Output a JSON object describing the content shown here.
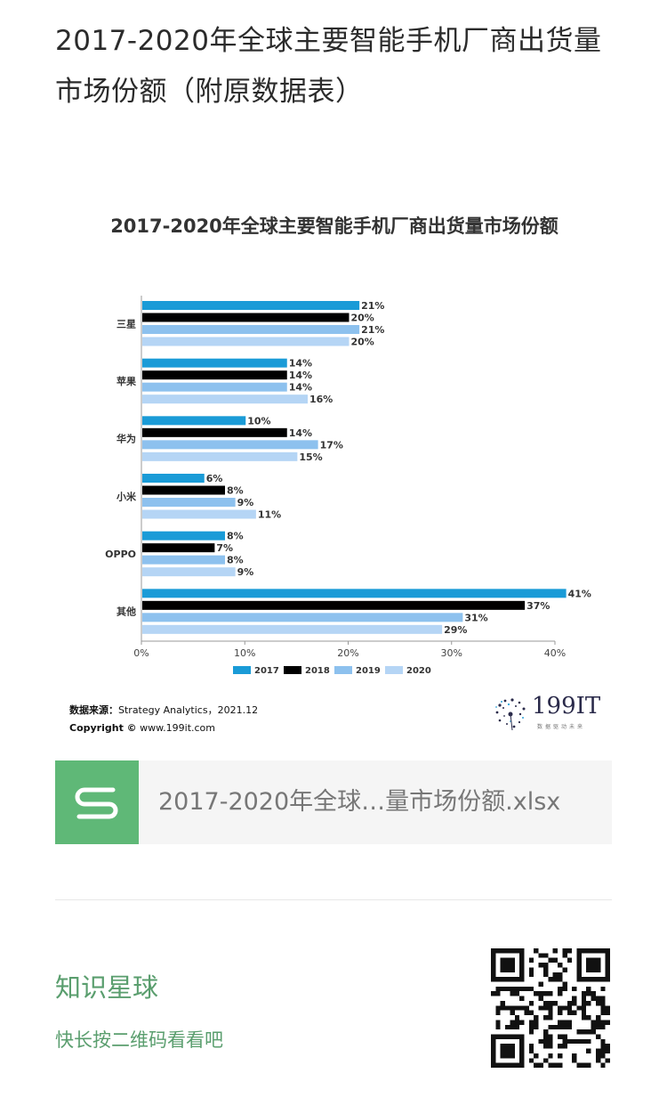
{
  "page": {
    "title": "2017-2020年全球主要智能手机厂商出货量市场份额（附原数据表）"
  },
  "chart_data": {
    "type": "bar",
    "orientation": "horizontal",
    "title": "2017-2020年全球主要智能手机厂商出货量市场份额",
    "categories": [
      "三星",
      "苹果",
      "华为",
      "小米",
      "OPPO",
      "其他"
    ],
    "series": [
      {
        "name": "2017",
        "color": "#1a9bd7",
        "values": [
          21,
          14,
          10,
          6,
          8,
          41
        ]
      },
      {
        "name": "2018",
        "color": "#000000",
        "values": [
          20,
          14,
          14,
          8,
          7,
          37
        ]
      },
      {
        "name": "2019",
        "color": "#8dc1ee",
        "values": [
          21,
          14,
          17,
          9,
          8,
          31
        ]
      },
      {
        "name": "2020",
        "color": "#b5d5f5",
        "values": [
          20,
          16,
          15,
          11,
          9,
          29
        ]
      }
    ],
    "xlim": [
      0,
      40
    ],
    "xticks": [
      "0%",
      "10%",
      "20%",
      "30%",
      "40%"
    ],
    "value_suffix": "%",
    "legend_position": "bottom",
    "grid": false
  },
  "source": {
    "label": "数据来源：",
    "text": "Strategy Analytics，2021.12",
    "copyright_label": "Copyright ©",
    "copyright_text": " www.199it.com"
  },
  "brand": {
    "name": "199IT",
    "tagline": "数据驱动未来"
  },
  "file_card": {
    "icon": "spreadsheet-s-icon",
    "filename": "2017-2020年全球…量市场份额.xlsx"
  },
  "footer": {
    "community": "知识星球",
    "prompt": "快长按二维码看看吧",
    "qr_icon": "qr-code-icon"
  }
}
